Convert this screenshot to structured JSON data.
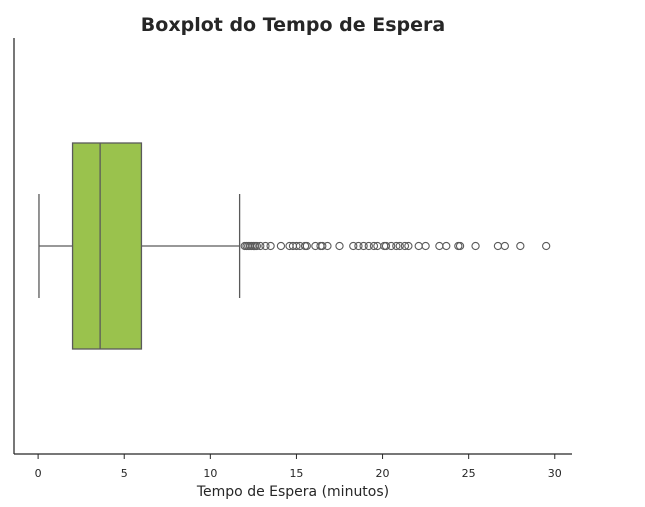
{
  "chart_data": {
    "type": "box",
    "title": "Boxplot do Tempo de Espera",
    "xlabel": "Tempo de Espera (minutos)",
    "ylabel": "",
    "orientation": "horizontal",
    "xlim": [
      -1.4,
      31
    ],
    "xticks": [
      0,
      5,
      10,
      15,
      20,
      25,
      30
    ],
    "xtick_labels": [
      "0",
      "5",
      "10",
      "15",
      "20",
      "25",
      "30"
    ],
    "grid": false,
    "legend": "none",
    "colors": {
      "box_fill": "#9ac24d",
      "line": "#5a5a5a",
      "axis": "#262626",
      "text": "#262626"
    },
    "box": {
      "whisker_low": 0.05,
      "q1": 2.0,
      "median": 3.6,
      "q3": 6.0,
      "whisker_high": 11.7
    },
    "outliers": [
      12.0,
      12.1,
      12.2,
      12.3,
      12.4,
      12.5,
      12.6,
      12.7,
      12.9,
      13.2,
      13.5,
      14.1,
      14.6,
      14.8,
      15.0,
      15.2,
      15.5,
      15.6,
      16.1,
      16.4,
      16.5,
      16.8,
      17.5,
      18.3,
      18.6,
      18.9,
      19.2,
      19.5,
      19.7,
      20.1,
      20.2,
      20.5,
      20.8,
      21.0,
      21.3,
      21.5,
      22.1,
      22.5,
      23.3,
      23.7,
      24.4,
      24.5,
      25.4,
      26.7,
      27.1,
      28.0,
      29.5
    ]
  }
}
